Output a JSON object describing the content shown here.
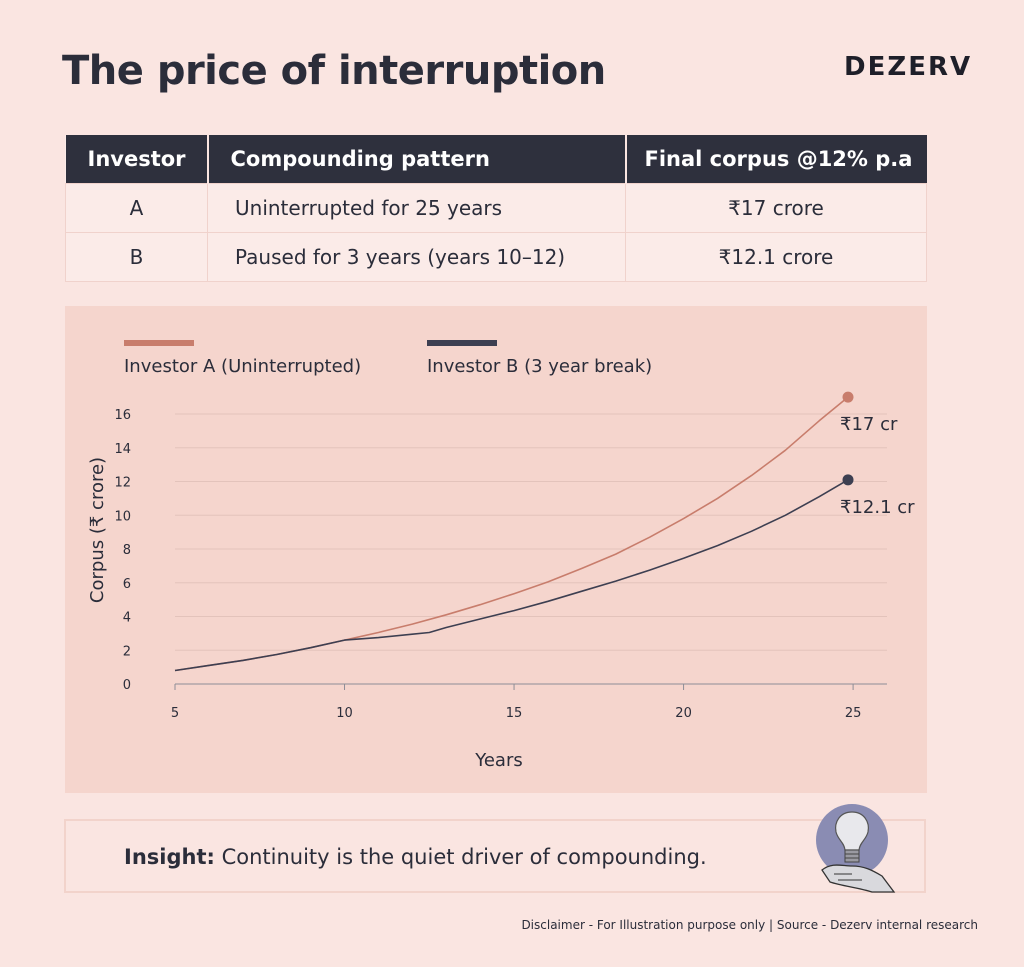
{
  "header": {
    "title": "The price of interruption",
    "brand": "DEZERV"
  },
  "table": {
    "headers": [
      "Investor",
      "Compounding pattern",
      "Final corpus @12% p.a"
    ],
    "rows": [
      {
        "investor": "A",
        "pattern": "Uninterrupted for 25 years",
        "corpus": "₹17 crore"
      },
      {
        "investor": "B",
        "pattern": "Paused for 3 years (years 10–12)",
        "corpus": "₹12.1 crore"
      }
    ]
  },
  "chart_data": {
    "type": "line",
    "xlabel": "Years",
    "ylabel": "Corpus (₹ crore)",
    "xlim": [
      5,
      26
    ],
    "ylim": [
      0,
      16
    ],
    "x_ticks": [
      5,
      10,
      15,
      20,
      25
    ],
    "y_ticks": [
      0,
      2,
      4,
      6,
      8,
      10,
      12,
      14,
      16
    ],
    "grid": "horizontal",
    "legend_placement": "top-left",
    "series": [
      {
        "name": "Investor A (Uninterrupted)",
        "color": "#c87d6c",
        "x": [
          5,
          6,
          7,
          8,
          9,
          10,
          11,
          12,
          13,
          14,
          15,
          16,
          17,
          18,
          19,
          20,
          21,
          22,
          23,
          24,
          24.85
        ],
        "y": [
          0.8,
          1.1,
          1.4,
          1.75,
          2.15,
          2.6,
          3.05,
          3.55,
          4.1,
          4.7,
          5.35,
          6.05,
          6.85,
          7.7,
          8.7,
          9.8,
          11.0,
          12.35,
          13.85,
          15.6,
          17.0
        ],
        "end_label": "₹17 cr"
      },
      {
        "name": "Investor B (3 year break)",
        "color": "#3d3f51",
        "x": [
          5,
          6,
          7,
          8,
          9,
          10,
          11,
          12,
          12.5,
          13,
          14,
          15,
          16,
          17,
          18,
          19,
          20,
          21,
          22,
          23,
          24,
          24.85
        ],
        "y": [
          0.8,
          1.1,
          1.4,
          1.75,
          2.15,
          2.6,
          2.75,
          2.95,
          3.05,
          3.35,
          3.85,
          4.35,
          4.9,
          5.5,
          6.1,
          6.75,
          7.45,
          8.2,
          9.05,
          10.0,
          11.1,
          12.1
        ],
        "end_label": "₹12.1 cr"
      }
    ]
  },
  "insight": {
    "label": "Insight:",
    "text": "Continuity is the quiet driver of compounding."
  },
  "disclaimer": "Disclaimer - For Illustration purpose only | Source - Dezerv internal research"
}
